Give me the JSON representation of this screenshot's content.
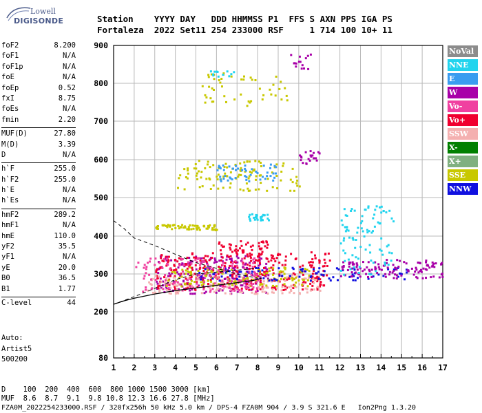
{
  "brand": {
    "line1": "Lowell",
    "line2": "DIGISONDE"
  },
  "header": {
    "row1": "Station    YYYY DAY   DDD HHMMSS P1  FFS S AXN PPS IGA PS",
    "row2": "Fortaleza  2022 Set11 254 233000 RSF     1 714 100 10+ 11"
  },
  "param_groups": [
    [
      {
        "label": "foF2",
        "value": "8.200"
      },
      {
        "label": "foF1",
        "value": "N/A"
      },
      {
        "label": "foF1p",
        "value": "N/A"
      },
      {
        "label": "foE",
        "value": "N/A"
      },
      {
        "label": "foEp",
        "value": "0.52"
      },
      {
        "label": "fxI",
        "value": "8.75"
      },
      {
        "label": "foEs",
        "value": "N/A"
      },
      {
        "label": "fmin",
        "value": "2.20"
      }
    ],
    [
      {
        "label": "MUF(D)",
        "value": "27.80"
      },
      {
        "label": "M(D)",
        "value": "3.39"
      },
      {
        "label": "D",
        "value": "N/A"
      }
    ],
    [
      {
        "label": "h`F",
        "value": "255.0"
      },
      {
        "label": "h`F2",
        "value": "255.0"
      },
      {
        "label": "h`E",
        "value": "N/A"
      },
      {
        "label": "h`Es",
        "value": "N/A"
      }
    ],
    [
      {
        "label": "hmF2",
        "value": "289.2"
      },
      {
        "label": "hmF1",
        "value": "N/A"
      },
      {
        "label": "hmE",
        "value": "110.0"
      },
      {
        "label": "yF2",
        "value": "35.5"
      },
      {
        "label": "yF1",
        "value": "N/A"
      },
      {
        "label": "yE",
        "value": "20.0"
      },
      {
        "label": "B0",
        "value": "36.5"
      },
      {
        "label": "B1",
        "value": "1.77"
      }
    ],
    [
      {
        "label": "C-level",
        "value": "44"
      }
    ]
  ],
  "auto": {
    "line1": "Auto:",
    "line2": "Artist5",
    "line3": "500200"
  },
  "legend": [
    {
      "label": "NoVal",
      "color": "#8c8c8c"
    },
    {
      "label": "NNE",
      "color": "#22d4ee"
    },
    {
      "label": "E",
      "color": "#3a9cf0"
    },
    {
      "label": "W",
      "color": "#a800a8"
    },
    {
      "label": "Vo-",
      "color": "#f040a0"
    },
    {
      "label": "Vo+",
      "color": "#f00030"
    },
    {
      "label": "SSW",
      "color": "#f4b0b0"
    },
    {
      "label": "X-",
      "color": "#008000"
    },
    {
      "label": "X+",
      "color": "#80b080"
    },
    {
      "label": "SSE",
      "color": "#c8c800"
    },
    {
      "label": "NNW",
      "color": "#1010e0"
    }
  ],
  "footer": {
    "line1": "D    100  200  400  600  800 1000 1500 3000 [km]",
    "line2": "MUF  8.6  8.7  9.1  9.8 10.8 12.3 16.6 27.8 [MHz]",
    "line3": "FZA0M_2022254233000.RSF / 320fx256h 50 kHz 5.0 km / DPS-4 FZA0M 904 / 3.9 S 321.6 E   Ion2Png 1.3.20"
  },
  "chart_data": {
    "type": "scatter",
    "xlim": [
      1,
      17
    ],
    "ylim": [
      80,
      900
    ],
    "x_ticks": [
      "1",
      "2",
      "3",
      "4",
      "5",
      "6",
      "7",
      "8",
      "9",
      "10",
      "11",
      "12",
      "13",
      "14",
      "15",
      "16",
      "17"
    ],
    "y_ticks": [
      "80",
      "200",
      "300",
      "400",
      "500",
      "600",
      "700",
      "800",
      "900"
    ],
    "grid": true,
    "profile_curve": [
      [
        1.0,
        220
      ],
      [
        1.5,
        229
      ],
      [
        2.0,
        236
      ],
      [
        3.0,
        247
      ],
      [
        4.0,
        256
      ],
      [
        5.0,
        263
      ],
      [
        6.0,
        270
      ],
      [
        7.0,
        277
      ],
      [
        7.8,
        283
      ],
      [
        8.2,
        289
      ]
    ],
    "profile_dashed_lower": [
      [
        1.0,
        220
      ],
      [
        2.0,
        240
      ],
      [
        3.0,
        262
      ],
      [
        4.0,
        285
      ],
      [
        5.0,
        300
      ],
      [
        6.0,
        305
      ],
      [
        7.0,
        310
      ],
      [
        8.0,
        315
      ]
    ],
    "profile_dashed_upper": [
      [
        1.0,
        440
      ],
      [
        1.5,
        420
      ],
      [
        2.0,
        395
      ],
      [
        3.0,
        375
      ],
      [
        4.0,
        352
      ],
      [
        5.0,
        330
      ],
      [
        6.0,
        315
      ],
      [
        7.0,
        300
      ],
      [
        8.0,
        289
      ]
    ],
    "echo_clusters": [
      {
        "color": "#a800a8",
        "x": [
          3.0,
          8.5
        ],
        "y": [
          250,
          350
        ],
        "n": 220
      },
      {
        "color": "#f00030",
        "x": [
          3.0,
          11.5
        ],
        "y": [
          260,
          360
        ],
        "n": 320
      },
      {
        "color": "#f4b0b0",
        "x": [
          2.5,
          11.0
        ],
        "y": [
          250,
          300
        ],
        "n": 160
      },
      {
        "color": "#c8c800",
        "x": [
          3.5,
          10.5
        ],
        "y": [
          270,
          320
        ],
        "n": 120
      },
      {
        "color": "#1010e0",
        "x": [
          5.0,
          15.5
        ],
        "y": [
          285,
          320
        ],
        "n": 90
      },
      {
        "color": "#a800a8",
        "x": [
          12.0,
          17.0
        ],
        "y": [
          290,
          340
        ],
        "n": 120
      },
      {
        "color": "#22d4ee",
        "x": [
          12.0,
          14.6
        ],
        "y": [
          300,
          480
        ],
        "n": 90
      },
      {
        "color": "#f040a0",
        "x": [
          2.0,
          8.0
        ],
        "y": [
          255,
          345
        ],
        "n": 140
      },
      {
        "color": "#f00030",
        "x": [
          6.0,
          8.5
        ],
        "y": [
          350,
          390
        ],
        "n": 50
      },
      {
        "color": "#c8c800",
        "x": [
          3.0,
          6.0
        ],
        "y": [
          418,
          432
        ],
        "n": 70
      },
      {
        "color": "#c8c800",
        "x": [
          4.0,
          10.0
        ],
        "y": [
          520,
          600
        ],
        "n": 110
      },
      {
        "color": "#3a9cf0",
        "x": [
          6.0,
          9.0
        ],
        "y": [
          545,
          590
        ],
        "n": 50
      },
      {
        "color": "#c8c800",
        "x": [
          5.0,
          9.5
        ],
        "y": [
          740,
          830
        ],
        "n": 50
      },
      {
        "color": "#a800a8",
        "x": [
          9.5,
          11.0
        ],
        "y": [
          840,
          880
        ],
        "n": 15
      },
      {
        "color": "#22d4ee",
        "x": [
          7.5,
          8.5
        ],
        "y": [
          440,
          460
        ],
        "n": 25
      },
      {
        "color": "#22d4ee",
        "x": [
          5.5,
          7.0
        ],
        "y": [
          820,
          835
        ],
        "n": 12
      },
      {
        "color": "#a800a8",
        "x": [
          10.0,
          11.0
        ],
        "y": [
          590,
          625
        ],
        "n": 20
      }
    ]
  }
}
